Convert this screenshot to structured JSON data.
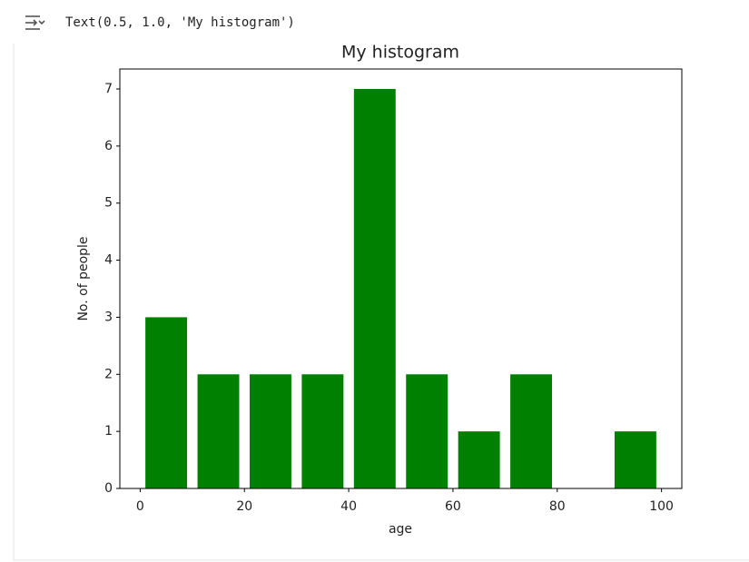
{
  "output_text": "Text(0.5, 1.0, 'My histogram')",
  "chart_data": {
    "type": "histogram",
    "title": "My histogram",
    "xlabel": "age",
    "ylabel": "No. of people",
    "bins": [
      0,
      10,
      20,
      30,
      40,
      50,
      60,
      70,
      80,
      90,
      100
    ],
    "values": [
      3,
      2,
      2,
      2,
      7,
      2,
      1,
      2,
      0,
      1
    ],
    "color": "#008000",
    "rwidth": 0.8,
    "xlim": [
      -3.9,
      103.9
    ],
    "xticks": [
      0,
      20,
      40,
      60,
      80,
      100
    ],
    "ylim": [
      0,
      7.35
    ],
    "yticks": [
      0,
      1,
      2,
      3,
      4,
      5,
      6,
      7
    ],
    "grid": false
  }
}
